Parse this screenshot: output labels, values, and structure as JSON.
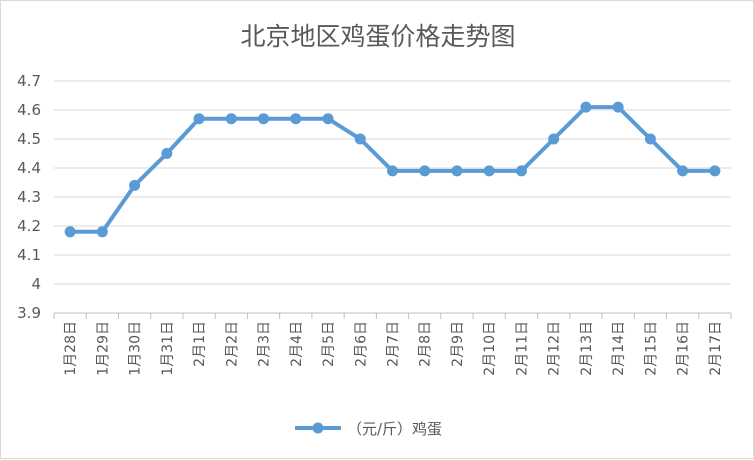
{
  "chart_data": {
    "type": "line",
    "title": "北京地区鸡蛋价格走势图",
    "xlabel": "",
    "ylabel": "",
    "categories": [
      "1月28日",
      "1月29日",
      "1月30日",
      "1月31日",
      "2月1日",
      "2月2日",
      "2月3日",
      "2月4日",
      "2月5日",
      "2月6日",
      "2月7日",
      "2月8日",
      "2月9日",
      "2月10日",
      "2月11日",
      "2月12日",
      "2月13日",
      "2月14日",
      "2月15日",
      "2月16日",
      "2月17日"
    ],
    "series": [
      {
        "name": "（元/斤）鸡蛋",
        "values": [
          4.18,
          4.18,
          4.34,
          4.45,
          4.57,
          4.57,
          4.57,
          4.57,
          4.57,
          4.5,
          4.39,
          4.39,
          4.39,
          4.39,
          4.39,
          4.5,
          4.61,
          4.61,
          4.5,
          4.39,
          4.39
        ]
      }
    ],
    "ylim": [
      3.9,
      4.7
    ],
    "yticks": [
      "3.9",
      "4",
      "4.1",
      "4.2",
      "4.3",
      "4.4",
      "4.5",
      "4.6",
      "4.7"
    ],
    "grid": true,
    "legend": "bottom",
    "color": "#5b9bd5"
  }
}
